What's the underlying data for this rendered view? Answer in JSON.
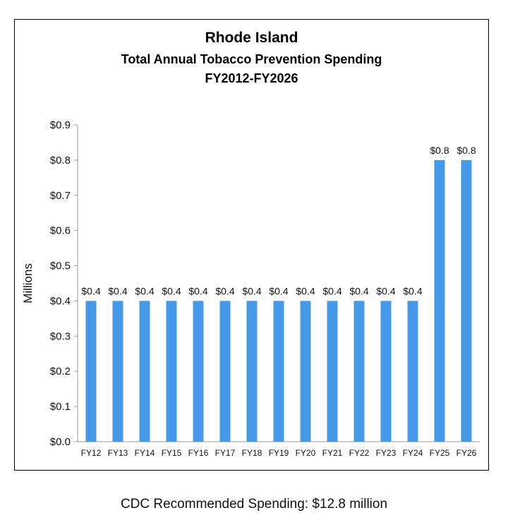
{
  "chart_data": {
    "type": "bar",
    "title": "Rhode Island",
    "subtitle": "Total Annual Tobacco Prevention Spending",
    "subtitle2": "FY2012-FY2026",
    "xlabel": "",
    "ylabel": "Millions",
    "ylim": [
      0,
      0.9
    ],
    "yticks": [
      "$0.0",
      "$0.1",
      "$0.2",
      "$0.3",
      "$0.4",
      "$0.5",
      "$0.6",
      "$0.7",
      "$0.8",
      "$0.9"
    ],
    "categories": [
      "FY12",
      "FY13",
      "FY14",
      "FY15",
      "FY16",
      "FY17",
      "FY18",
      "FY19",
      "FY20",
      "FY21",
      "FY22",
      "FY23",
      "FY24",
      "FY25",
      "FY26"
    ],
    "values": [
      0.4,
      0.4,
      0.4,
      0.4,
      0.4,
      0.4,
      0.4,
      0.4,
      0.4,
      0.4,
      0.4,
      0.4,
      0.4,
      0.8,
      0.8
    ],
    "data_labels": [
      "$0.4",
      "$0.4",
      "$0.4",
      "$0.4",
      "$0.4",
      "$0.4",
      "$0.4",
      "$0.4",
      "$0.4",
      "$0.4",
      "$0.4",
      "$0.4",
      "$0.4",
      "$0.8",
      "$0.8"
    ],
    "bar_color": "#4499E8",
    "grid": false
  },
  "footer": "CDC Recommended Spending: $12.8 million"
}
